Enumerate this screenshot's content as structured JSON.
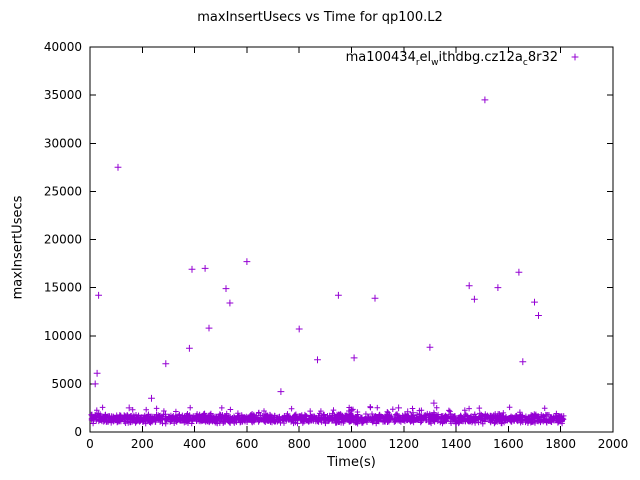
{
  "chart_data": {
    "type": "scatter",
    "title": "maxInsertUsecs vs Time for qp100.L2",
    "xlabel": "Time(s)",
    "ylabel": "maxInsertUsecs",
    "xlim": [
      0,
      2000
    ],
    "ylim": [
      0,
      40000
    ],
    "xtick_step": 200,
    "ytick_step": 5000,
    "grid": false,
    "legend_position": "top-right-inside",
    "marker": "plus",
    "point_color": "#9400d3",
    "axis_color": "#000000",
    "legend": {
      "parts": [
        {
          "text": "ma100434"
        },
        {
          "text": "r",
          "sub": true
        },
        {
          "text": "el"
        },
        {
          "text": "w",
          "sub": true
        },
        {
          "text": "ithdbg.cz12a"
        },
        {
          "text": "c",
          "sub": true
        },
        {
          "text": "8r32"
        }
      ]
    },
    "outliers": [
      [
        20,
        5000
      ],
      [
        27,
        6100
      ],
      [
        33,
        14200
      ],
      [
        107,
        27500
      ],
      [
        150,
        2500
      ],
      [
        235,
        3500
      ],
      [
        290,
        7100
      ],
      [
        380,
        8700
      ],
      [
        390,
        16900
      ],
      [
        440,
        17000
      ],
      [
        455,
        10800
      ],
      [
        520,
        14900
      ],
      [
        535,
        13400
      ],
      [
        600,
        17700
      ],
      [
        730,
        4200
      ],
      [
        800,
        10700
      ],
      [
        870,
        7500
      ],
      [
        950,
        14200
      ],
      [
        1010,
        7700
      ],
      [
        1090,
        13900
      ],
      [
        1180,
        2500
      ],
      [
        1215,
        2100
      ],
      [
        1235,
        2000
      ],
      [
        1300,
        8800
      ],
      [
        1315,
        3000
      ],
      [
        1450,
        15200
      ],
      [
        1470,
        13800
      ],
      [
        1510,
        34500
      ],
      [
        1560,
        15000
      ],
      [
        1640,
        16600
      ],
      [
        1655,
        7300
      ],
      [
        1700,
        13500
      ],
      [
        1715,
        12100
      ]
    ],
    "band": {
      "description": "dense noise band of baseline insert latencies",
      "count": 1600,
      "x_min": 2,
      "x_max": 1812,
      "y_min": 820,
      "y_max": 1950,
      "seed": 42
    },
    "band_secondary": {
      "description": "sparse points just above the main band",
      "count": 45,
      "x_min": 5,
      "x_max": 1800,
      "y_min": 1850,
      "y_max": 2650,
      "seed": 7
    }
  }
}
